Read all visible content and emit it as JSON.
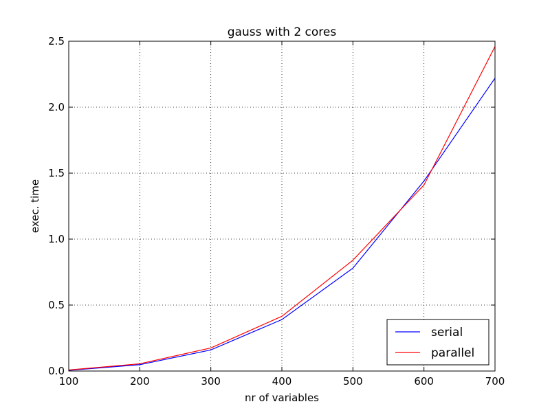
{
  "chart_data": {
    "type": "line",
    "title": "gauss with 2 cores",
    "xlabel": "nr of variables",
    "ylabel": "exec. time",
    "xlim": [
      100,
      700
    ],
    "ylim": [
      0.0,
      2.5
    ],
    "xticks": [
      100,
      200,
      300,
      400,
      500,
      600,
      700
    ],
    "yticks": [
      0.0,
      0.5,
      1.0,
      1.5,
      2.0,
      2.5
    ],
    "xtick_labels": [
      "100",
      "200",
      "300",
      "400",
      "500",
      "600",
      "700"
    ],
    "ytick_labels": [
      "0.0",
      "0.5",
      "1.0",
      "1.5",
      "2.0",
      "2.5"
    ],
    "grid": true,
    "legend_position": "lower-right",
    "x": [
      100,
      200,
      300,
      400,
      500,
      600,
      700
    ],
    "series": [
      {
        "name": "serial",
        "color": "#0000ff",
        "values": [
          0.005,
          0.048,
          0.16,
          0.39,
          0.78,
          1.44,
          2.22
        ]
      },
      {
        "name": "parallel",
        "color": "#ff0000",
        "values": [
          0.008,
          0.055,
          0.175,
          0.415,
          0.84,
          1.41,
          2.46
        ]
      }
    ]
  }
}
